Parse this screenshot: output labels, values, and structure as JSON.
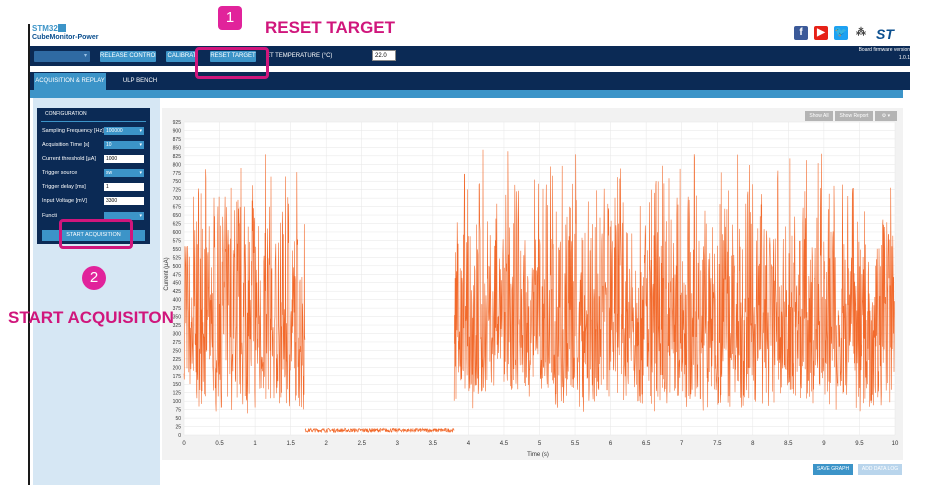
{
  "app": {
    "logo_brand": "STM32",
    "logo_name": "CubeMonitor-Power"
  },
  "toolbar": {
    "release_control": "RELEASE CONTROL",
    "calibrate": "CALIBRAT",
    "reset_target": "RESET TARGET",
    "set_temperature_label": "ET TEMPERATURE (°C)",
    "temperature_value": "22.0",
    "firmware_label": "Board firmware version",
    "firmware_version": "1.0.1"
  },
  "tabs": [
    {
      "label": "ACQUISITION & REPLAY",
      "active": true
    },
    {
      "label": "ULP BENCH",
      "active": false
    }
  ],
  "config": {
    "title": "CONFIGURATION",
    "rows": [
      {
        "label": "Sampling Frequency [Hz]",
        "value": "100000",
        "kind": "select"
      },
      {
        "label": "Acquisition Time [s]",
        "value": "10",
        "kind": "select"
      },
      {
        "label": "Current threshold [µA]",
        "value": "1000",
        "kind": "input"
      },
      {
        "label": "Trigger source",
        "value": "sw",
        "kind": "select"
      },
      {
        "label": "Trigger delay [ms]",
        "value": "1",
        "kind": "input"
      },
      {
        "label": "Input Voltage [mV]",
        "value": "3300",
        "kind": "input"
      },
      {
        "label": "Functi",
        "value": "",
        "kind": "select"
      }
    ],
    "start_acquisition": "START ACQUISITION"
  },
  "plot_controls": {
    "show_all": "Show All",
    "show_report": "Show Report",
    "gear": "⚙ ▾"
  },
  "bottom": {
    "save_graph": "SAVE GRAPH",
    "add_data_log": "ADD DATA LOG"
  },
  "annotations": {
    "step1_number": "1",
    "step1_text": "RESET TARGET",
    "step2_number": "2",
    "step2_text": "START ACQUISITON"
  },
  "colors": {
    "navy": "#0b2a55",
    "blue": "#3c94c8",
    "trace": "#f26a2c",
    "magenta": "#d0167c"
  },
  "chart_data": {
    "type": "line",
    "xlabel": "Time (s)",
    "ylabel": "Current (µA)",
    "xlim": [
      0,
      10
    ],
    "ylim": [
      0,
      925
    ],
    "x_ticks": [
      "0",
      "0.5",
      "1",
      "1.5",
      "2",
      "2.5",
      "3",
      "3.5",
      "4",
      "4.5",
      "5",
      "5.5",
      "6",
      "6.5",
      "7",
      "7.5",
      "8",
      "8.5",
      "9",
      "9.5",
      "10"
    ],
    "y_ticks": [
      "0",
      "25",
      "50",
      "75",
      "100",
      "125",
      "150",
      "175",
      "200",
      "225",
      "250",
      "275",
      "300",
      "325",
      "350",
      "375",
      "400",
      "425",
      "450",
      "475",
      "500",
      "525",
      "550",
      "575",
      "600",
      "625",
      "650",
      "675",
      "700",
      "725",
      "750",
      "775",
      "800",
      "825",
      "850",
      "875",
      "900",
      "925"
    ],
    "series": [
      {
        "segments": [
          {
            "x_start": 0.0,
            "x_end": 1.7,
            "low": 60,
            "high": 850
          },
          {
            "x_start": 1.7,
            "x_end": 3.8,
            "low": 8,
            "high": 20
          },
          {
            "x_start": 3.8,
            "x_end": 10.0,
            "low": 60,
            "high": 880
          }
        ]
      }
    ],
    "grid": true
  }
}
